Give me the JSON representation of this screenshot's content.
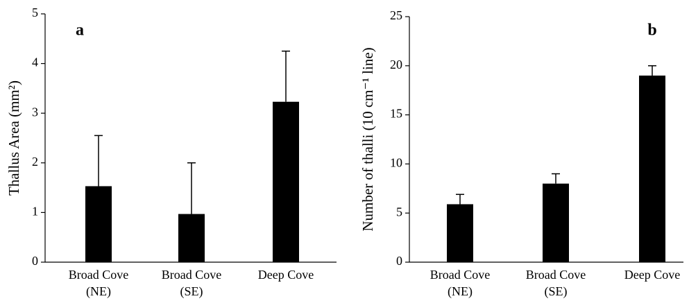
{
  "chart_data": [
    {
      "type": "bar",
      "panel_label": "a",
      "y_label": "Thallus Area (mm²)",
      "categories": [
        [
          "Broad Cove",
          "(NE)"
        ],
        [
          "Broad Cove",
          "(SE)"
        ],
        [
          "Deep Cove"
        ]
      ],
      "values": [
        1.53,
        0.97,
        3.23
      ],
      "errors": [
        1.02,
        1.03,
        1.02
      ],
      "color": "#000000",
      "ylim": [
        0,
        5
      ],
      "yticks": [
        0,
        1,
        2,
        3,
        4,
        5
      ]
    },
    {
      "type": "bar",
      "panel_label": "b",
      "y_label": "Number of thalli (10 cm⁻¹ line)",
      "categories": [
        [
          "Broad Cove",
          "(NE)"
        ],
        [
          "Broad Cove",
          "(SE)"
        ],
        [
          "Deep Cove"
        ]
      ],
      "values": [
        5.9,
        8.0,
        19.0
      ],
      "errors": [
        1.0,
        1.0,
        1.0
      ],
      "color": "#000000",
      "ylim": [
        0,
        25
      ],
      "yticks": [
        0,
        5,
        10,
        15,
        20,
        25
      ]
    }
  ]
}
